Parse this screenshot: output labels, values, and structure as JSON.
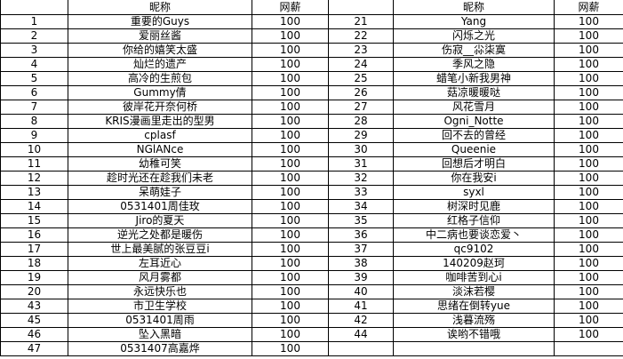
{
  "header": {
    "index": "",
    "nickname": "昵称",
    "salary": "网薪"
  },
  "left": [
    {
      "no": "1",
      "name": "重要的Guys",
      "salary": "100"
    },
    {
      "no": "2",
      "name": "爱丽丝酱",
      "salary": "100"
    },
    {
      "no": "3",
      "name": "你给的嬉笑太盛",
      "salary": "100"
    },
    {
      "no": "4",
      "name": "灿烂的遗产",
      "salary": "100"
    },
    {
      "no": "5",
      "name": "高冷的生煎包",
      "salary": "100"
    },
    {
      "no": "6",
      "name": "Gummy倩",
      "salary": "100"
    },
    {
      "no": "7",
      "name": "彼岸花开奈何桥",
      "salary": "100"
    },
    {
      "no": "8",
      "name": "KRIS漫画里走出的型男",
      "salary": "100"
    },
    {
      "no": "9",
      "name": "cplasf",
      "salary": "100"
    },
    {
      "no": "10",
      "name": "NGlANce",
      "salary": "100"
    },
    {
      "no": "11",
      "name": "幼稚可笑",
      "salary": "100"
    },
    {
      "no": "12",
      "name": "趁时光还在趁我们未老",
      "salary": "100"
    },
    {
      "no": "13",
      "name": "呆萌娃子",
      "salary": "100"
    },
    {
      "no": "14",
      "name": "0531401周佳玫",
      "salary": "100"
    },
    {
      "no": "15",
      "name": "Jiro的夏天",
      "salary": "100"
    },
    {
      "no": "16",
      "name": "逆光之处都是暖伤",
      "salary": "100"
    },
    {
      "no": "17",
      "name": "世上最美腻的张豆豆i",
      "salary": "100"
    },
    {
      "no": "18",
      "name": "左耳近心",
      "salary": "100"
    },
    {
      "no": "19",
      "name": "风月雾都",
      "salary": "100"
    },
    {
      "no": "20",
      "name": "永远快乐也",
      "salary": "100"
    },
    {
      "no": "43",
      "name": "市卫生学校",
      "salary": "100"
    },
    {
      "no": "45",
      "name": "0531401周雨",
      "salary": "100"
    },
    {
      "no": "46",
      "name": "坠入黑暗",
      "salary": "100"
    },
    {
      "no": "47",
      "name": "0531407高嘉烨",
      "salary": "100"
    }
  ],
  "right": [
    {
      "no": "21",
      "name": "Yang",
      "salary": "100"
    },
    {
      "no": "22",
      "name": "闪烁之光",
      "salary": "100"
    },
    {
      "no": "23",
      "name": "伤寂__尛柒寞",
      "salary": "100"
    },
    {
      "no": "24",
      "name": "季风之隐",
      "salary": "100"
    },
    {
      "no": "25",
      "name": "蜡笔小新我男神",
      "salary": "100"
    },
    {
      "no": "26",
      "name": "菇凉暖暖哒",
      "salary": "100"
    },
    {
      "no": "27",
      "name": "风花雪月",
      "salary": "100"
    },
    {
      "no": "28",
      "name": "Ogni_Notte",
      "salary": "100"
    },
    {
      "no": "29",
      "name": "回不去的曾经",
      "salary": "100"
    },
    {
      "no": "30",
      "name": "Queenie",
      "salary": "100"
    },
    {
      "no": "31",
      "name": "回想后才明白",
      "salary": "100"
    },
    {
      "no": "32",
      "name": "你在我安i",
      "salary": "100"
    },
    {
      "no": "33",
      "name": "syxl",
      "salary": "100"
    },
    {
      "no": "34",
      "name": "树深时见鹿",
      "salary": "100"
    },
    {
      "no": "35",
      "name": "红格子信仰",
      "salary": "100"
    },
    {
      "no": "36",
      "name": "中二病也要谈恋爱丶",
      "salary": "100"
    },
    {
      "no": "37",
      "name": "qc9102",
      "salary": "100"
    },
    {
      "no": "38",
      "name": "140209赵珂",
      "salary": "100"
    },
    {
      "no": "39",
      "name": "咖啡苦到心i",
      "salary": "100"
    },
    {
      "no": "40",
      "name": "淡沫若樱",
      "salary": "100"
    },
    {
      "no": "41",
      "name": "思绪在倒转yue",
      "salary": "100"
    },
    {
      "no": "42",
      "name": "浅暮流殇",
      "salary": "100"
    },
    {
      "no": "44",
      "name": "诶哟不错哦",
      "salary": "100"
    },
    {
      "no": "",
      "name": "",
      "salary": ""
    }
  ]
}
